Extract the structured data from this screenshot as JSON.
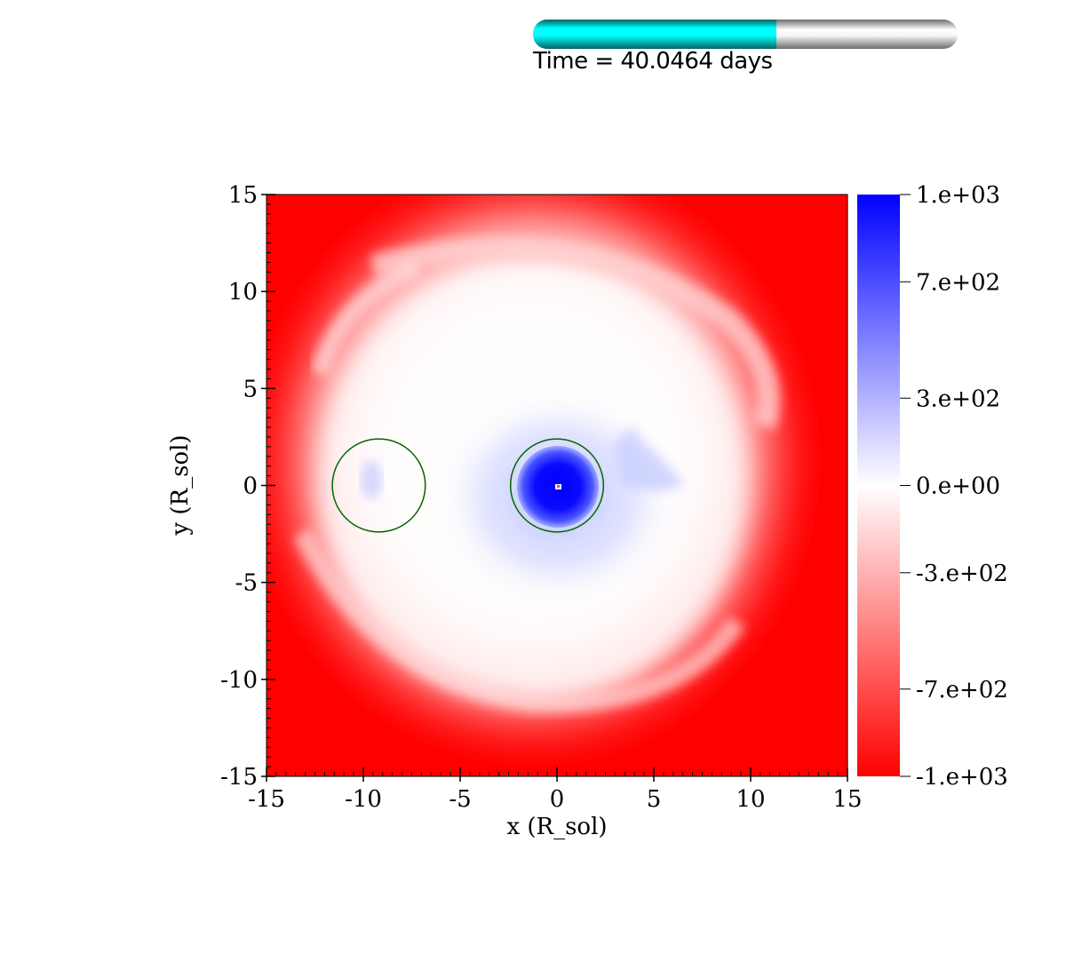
{
  "time_bar": {
    "label": "Time = 40.0464 days",
    "progress_fraction": 0.573,
    "fill_color": "#00e5e5",
    "track_color": "#e0e0e0"
  },
  "chart_data": {
    "type": "heatmap",
    "title": "",
    "xlabel": "x (R_sol)",
    "ylabel": "y (R_sol)",
    "xlim": [
      -15,
      15
    ],
    "ylim": [
      -15,
      15
    ],
    "x_ticks": [
      -15,
      -10,
      -5,
      0,
      5,
      10,
      15
    ],
    "y_ticks": [
      -15,
      -10,
      -5,
      0,
      5,
      10,
      15
    ],
    "x_tick_labels": [
      "-15",
      "-10",
      "-5",
      "0",
      "5",
      "10",
      "15"
    ],
    "y_tick_labels": [
      "-15",
      "-10",
      "-5",
      "0",
      "5",
      "10",
      "15"
    ],
    "colorbar": {
      "min": -1000,
      "max": 1000,
      "colormap": [
        "#ff0000",
        "#ffffff",
        "#0000ff"
      ],
      "ticks": [
        1000,
        700,
        300,
        0,
        -300,
        -700,
        -1000
      ],
      "tick_labels": [
        "1.e+03",
        "7.e+02",
        "3.e+02",
        "0.e+00",
        "-3.e+02",
        "-7.e+02",
        "-1.e+03"
      ]
    },
    "markers": [
      {
        "shape": "circle",
        "cx": -9.2,
        "cy": 0.0,
        "r": 2.4,
        "color": "#006400"
      },
      {
        "shape": "circle",
        "cx": 0.0,
        "cy": 0.0,
        "r": 2.4,
        "color": "#006400"
      }
    ],
    "field_colors": {
      "background": "#ff0000",
      "core": "#0000ff"
    }
  }
}
